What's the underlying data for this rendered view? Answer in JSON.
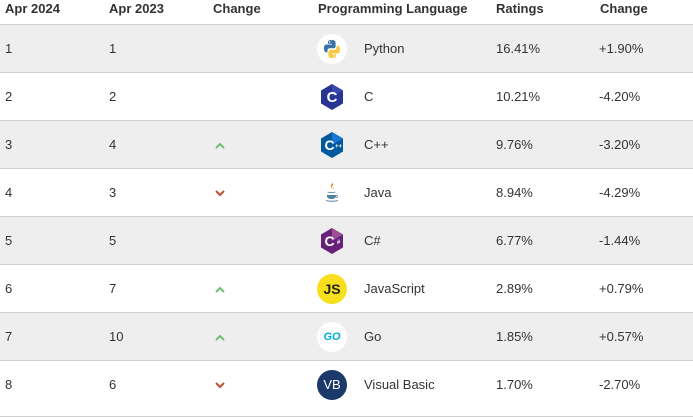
{
  "headers": {
    "apr2024": "Apr 2024",
    "apr2023": "Apr 2023",
    "change": "Change",
    "language": "Programming Language",
    "ratings": "Ratings",
    "change2": "Change"
  },
  "colors": {
    "up_arrow": "#6fbf73",
    "down_arrow": "#c0502f",
    "row_alt": "#eeeeee",
    "border": "#cfcfcf"
  },
  "rows": [
    {
      "rank2024": "1",
      "rank2023": "1",
      "trend": "",
      "language": "Python",
      "icon": "python-icon",
      "ratings": "16.41%",
      "change": "+1.90%"
    },
    {
      "rank2024": "2",
      "rank2023": "2",
      "trend": "",
      "language": "C",
      "icon": "c-icon",
      "ratings": "10.21%",
      "change": "-4.20%"
    },
    {
      "rank2024": "3",
      "rank2023": "4",
      "trend": "up",
      "language": "C++",
      "icon": "cpp-icon",
      "ratings": "9.76%",
      "change": "-3.20%"
    },
    {
      "rank2024": "4",
      "rank2023": "3",
      "trend": "down",
      "language": "Java",
      "icon": "java-icon",
      "ratings": "8.94%",
      "change": "-4.29%"
    },
    {
      "rank2024": "5",
      "rank2023": "5",
      "trend": "",
      "language": "C#",
      "icon": "csharp-icon",
      "ratings": "6.77%",
      "change": "-1.44%"
    },
    {
      "rank2024": "6",
      "rank2023": "7",
      "trend": "up",
      "language": "JavaScript",
      "icon": "javascript-icon",
      "ratings": "2.89%",
      "change": "+0.79%"
    },
    {
      "rank2024": "7",
      "rank2023": "10",
      "trend": "up",
      "language": "Go",
      "icon": "go-icon",
      "ratings": "1.85%",
      "change": "+0.57%"
    },
    {
      "rank2024": "8",
      "rank2023": "6",
      "trend": "down",
      "language": "Visual Basic",
      "icon": "visual-basic-icon",
      "ratings": "1.70%",
      "change": "-2.70%"
    }
  ],
  "logo_text": {
    "javascript": "JS",
    "go": "GO",
    "visual_basic": "VB"
  }
}
